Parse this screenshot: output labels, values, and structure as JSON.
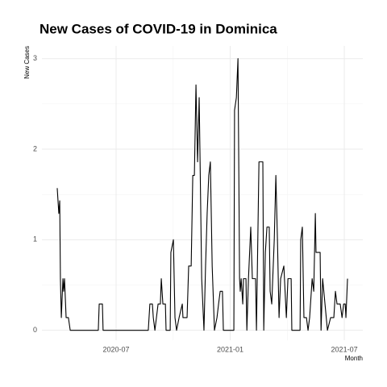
{
  "chart_data": {
    "type": "line",
    "title": "New Cases of COVID-19 in Dominica",
    "x_label": "Month",
    "y_label": "New Cases",
    "x": [
      2020.242,
      2020.249,
      2020.253,
      2020.256,
      2020.26,
      2020.267,
      2020.27,
      2020.274,
      2020.281,
      2020.291,
      2020.299,
      2020.422,
      2020.426,
      2020.44,
      2020.443,
      2020.641,
      2020.648,
      2020.659,
      2020.663,
      2020.67,
      2020.684,
      2020.694,
      2020.698,
      2020.705,
      2020.716,
      2020.719,
      2020.737,
      2020.74,
      2020.751,
      2020.758,
      2020.765,
      2020.776,
      2020.79,
      2020.793,
      2020.811,
      2020.818,
      2020.829,
      2020.836,
      2020.843,
      2020.85,
      2020.857,
      2020.864,
      2020.868,
      2020.875,
      2020.885,
      2020.892,
      2020.899,
      2020.906,
      2020.913,
      2020.921,
      2020.931,
      2020.942,
      2020.949,
      2020.956,
      2020.966,
      2020.97,
      2021.016,
      2021.019,
      2021.027,
      2021.034,
      2021.037,
      2021.041,
      2021.044,
      2021.048,
      2021.055,
      2021.058,
      2021.069,
      2021.073,
      2021.08,
      2021.09,
      2021.097,
      2021.111,
      2021.115,
      2021.126,
      2021.143,
      2021.147,
      2021.154,
      2021.161,
      2021.171,
      2021.175,
      2021.182,
      2021.193,
      2021.2,
      2021.207,
      2021.214,
      2021.221,
      2021.235,
      2021.246,
      2021.253,
      2021.267,
      2021.27,
      2021.306,
      2021.309,
      2021.316,
      2021.323,
      2021.334,
      2021.341,
      2021.348,
      2021.359,
      2021.366,
      2021.373,
      2021.376,
      2021.394,
      2021.398,
      2021.405,
      2021.426,
      2021.44,
      2021.454,
      2021.461,
      2021.468,
      2021.482,
      2021.49,
      2021.497,
      2021.504,
      2021.507,
      2021.514
    ],
    "series": [
      {
        "name": "New Cases",
        "color": "#000000",
        "values": [
          1.57,
          1.29,
          1.43,
          0.57,
          0.14,
          0.57,
          0.43,
          0.57,
          0.14,
          0.14,
          0,
          0,
          0.29,
          0.29,
          0,
          0,
          0.29,
          0.29,
          0.14,
          0,
          0.29,
          0.29,
          0.57,
          0.29,
          0.29,
          0,
          0,
          0.86,
          1,
          0.14,
          0,
          0.14,
          0.29,
          0.14,
          0.14,
          0.71,
          0.71,
          1.71,
          1.71,
          2.71,
          1.86,
          2.57,
          1.86,
          0.57,
          0,
          0.71,
          1.29,
          1.71,
          1.86,
          0.71,
          0,
          0.14,
          0.29,
          0.43,
          0.43,
          0,
          0,
          2.43,
          2.57,
          3,
          2.0,
          0.57,
          0.43,
          0.57,
          0.29,
          0.57,
          0.57,
          0,
          0.57,
          1.14,
          0.57,
          0.57,
          0,
          1.86,
          1.86,
          0,
          0.86,
          1.14,
          1.14,
          0.43,
          0.29,
          1.0,
          1.71,
          1.0,
          0.14,
          0.57,
          0.71,
          0.14,
          0.57,
          0.57,
          0,
          0,
          1.0,
          1.14,
          0.14,
          0.14,
          0,
          0.14,
          0.57,
          0.43,
          1.29,
          0.86,
          0.86,
          0,
          0.57,
          0,
          0.14,
          0.14,
          0.43,
          0.29,
          0.29,
          0.14,
          0.29,
          0.29,
          0.14,
          0.57
        ]
      }
    ],
    "xlim": [
      2020.175,
      2021.581
    ],
    "xticks": [
      {
        "value": 2020.5,
        "label": "2020-07"
      },
      {
        "value": 2021.0,
        "label": "2021-01"
      },
      {
        "value": 2021.5,
        "label": "2021-07"
      }
    ],
    "ylim": [
      -0.11,
      3.14
    ],
    "yticks": [
      0,
      1,
      2,
      3
    ],
    "grid": true
  }
}
